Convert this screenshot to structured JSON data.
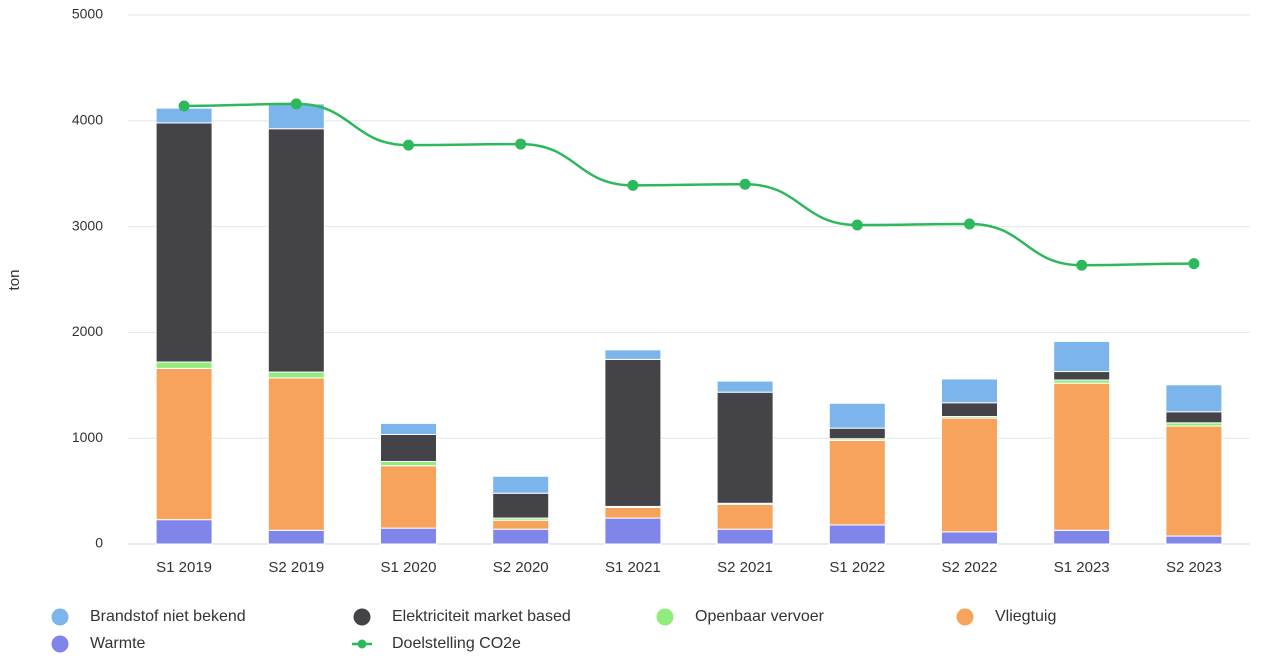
{
  "chart_data": {
    "type": "bar",
    "stacked": true,
    "y_label": "ton",
    "categories": [
      "S1 2019",
      "S2 2019",
      "S1 2020",
      "S2 2020",
      "S1 2021",
      "S2 2021",
      "S1 2022",
      "S2 2022",
      "S1 2023",
      "S2 2023"
    ],
    "series": [
      {
        "name": "Brandstof niet bekend",
        "color": "#7cb5ec",
        "values": [
          140,
          235,
          105,
          160,
          90,
          105,
          235,
          225,
          285,
          255
        ]
      },
      {
        "name": "Elektriciteit market based",
        "color": "#434348",
        "values": [
          2260,
          2300,
          255,
          235,
          1390,
          1050,
          100,
          130,
          80,
          105
        ]
      },
      {
        "name": "Openbaar vervoer",
        "color": "#90ed7d",
        "values": [
          60,
          55,
          40,
          20,
          10,
          10,
          15,
          15,
          30,
          30
        ]
      },
      {
        "name": "Vliegtuig",
        "color": "#f7a35c",
        "values": [
          1430,
          1440,
          590,
          85,
          100,
          235,
          800,
          1075,
          1390,
          1040
        ]
      },
      {
        "name": "Warmte",
        "color": "#8085e9",
        "values": [
          230,
          130,
          150,
          140,
          245,
          140,
          180,
          115,
          130,
          75
        ]
      },
      {
        "name": "Doelstelling CO2e",
        "color": "#2eb85c",
        "type": "line",
        "values": [
          4140,
          4160,
          3770,
          3780,
          3390,
          3400,
          3015,
          3025,
          2635,
          2650
        ]
      }
    ],
    "ylim": [
      0,
      5000
    ],
    "yticks": [
      0,
      1000,
      2000,
      3000,
      4000,
      5000
    ],
    "grid": true,
    "legend": "bottom"
  }
}
